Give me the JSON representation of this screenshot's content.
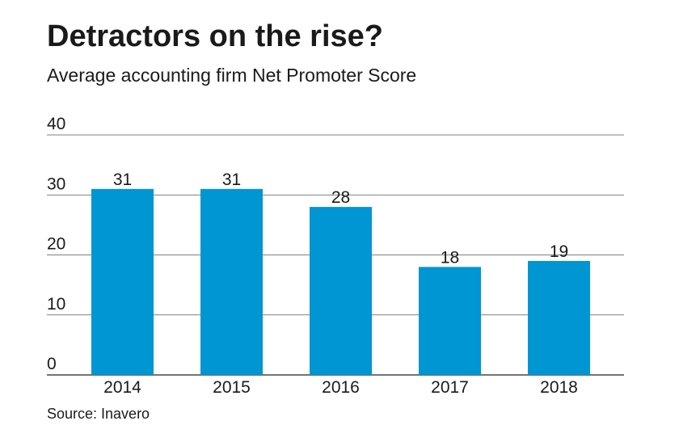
{
  "chart_data": {
    "type": "bar",
    "title": "Detractors on the rise?",
    "subtitle": "Average accounting firm Net Promoter Score",
    "source": "Source: Inavero",
    "categories": [
      "2014",
      "2015",
      "2016",
      "2017",
      "2018"
    ],
    "values": [
      31,
      31,
      28,
      18,
      19
    ],
    "data_labels": [
      "31",
      "31",
      "28",
      "18",
      "19"
    ],
    "ylim": [
      0,
      40
    ],
    "yticks": [
      0,
      10,
      20,
      30,
      40
    ],
    "ytick_labels": [
      "0",
      "10",
      "20",
      "30",
      "40"
    ],
    "xlabel": "",
    "ylabel": "",
    "grid": true,
    "legend": "none",
    "colors": {
      "bar": "#0095d3",
      "gridline": "#555555",
      "text": "#1a1a1a"
    }
  }
}
